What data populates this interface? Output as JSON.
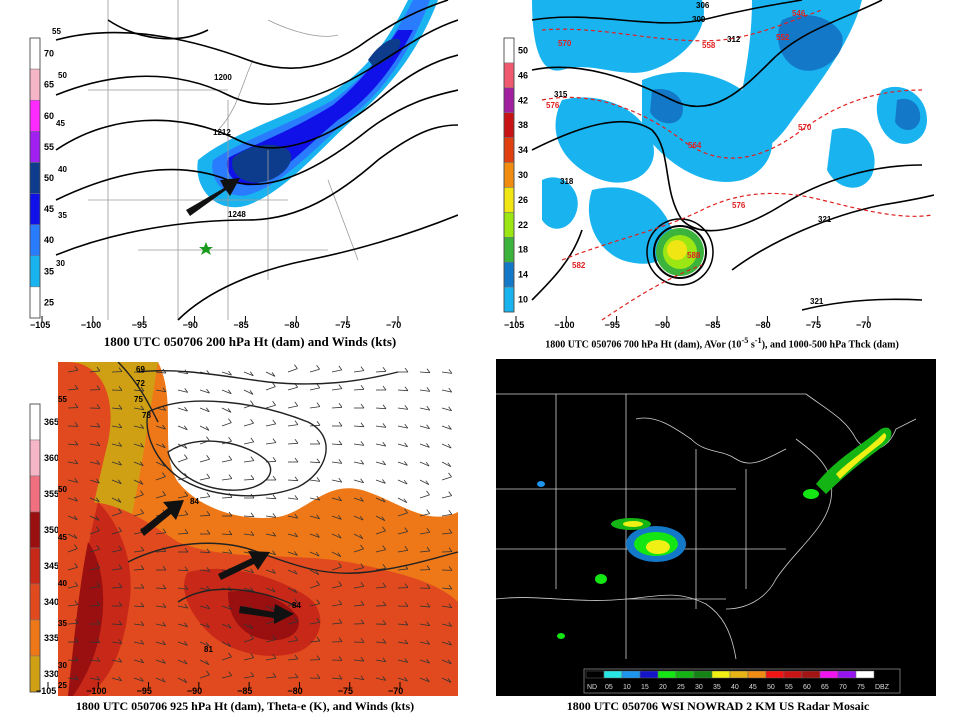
{
  "panels": {
    "tl": {
      "caption": "1800 UTC 050706 200 hPa Ht (dam) and Winds (kts)",
      "scale": [
        "70",
        "65",
        "60",
        "55",
        "50",
        "45",
        "40",
        "35",
        "25"
      ],
      "scale_colors": [
        "#ffffff",
        "#f7b6c8",
        "#ff2aff",
        "#a020f0",
        "#0d3c8c",
        "#1010e8",
        "#2a7cff",
        "#19b4f0",
        "#ffffff"
      ],
      "lon_ticks": [
        "−105",
        "−100",
        "−95",
        "−90",
        "−85",
        "−80",
        "−75",
        "−70"
      ],
      "contours": [
        "55",
        "50",
        "45",
        "40",
        "35",
        "30",
        "1200",
        "1212",
        "1248"
      ]
    },
    "tr": {
      "caption_pre": "1800 UTC 050706 700 hPa Ht (dam), AVor (10",
      "caption_sup1": "-5",
      "caption_mid": " s",
      "caption_sup2": "-1",
      "caption_post": "), and 1000-500 hPa Thck (dam)",
      "scale": [
        "50",
        "46",
        "42",
        "38",
        "34",
        "30",
        "26",
        "22",
        "18",
        "14",
        "10"
      ],
      "scale_colors": [
        "#ffffff",
        "#f05a6e",
        "#a020a0",
        "#c81414",
        "#e04010",
        "#f08c10",
        "#f0e614",
        "#9ce614",
        "#3cb43c",
        "#1478c8",
        "#19b4f0"
      ],
      "lon_ticks": [
        "−105",
        "−100",
        "−95",
        "−90",
        "−85",
        "−80",
        "−75",
        "−70"
      ],
      "contours": [
        "306",
        "309",
        "312",
        "315",
        "318",
        "321",
        "321"
      ],
      "red_contours": [
        "546",
        "552",
        "558",
        "564",
        "570",
        "570",
        "576",
        "576",
        "582",
        "588"
      ]
    },
    "bl": {
      "caption": "1800 UTC 050706 925 hPa Ht (dam), Theta-e (K), and Winds (kts)",
      "scale": [
        "365",
        "360",
        "355",
        "350",
        "345",
        "340",
        "335",
        "330"
      ],
      "scale_colors": [
        "#ffffff",
        "#f7b6c8",
        "#f07080",
        "#9a1010",
        "#c82818",
        "#e04a1e",
        "#ee7818",
        "#d0a014"
      ],
      "lon_ticks": [
        "−105",
        "−100",
        "−95",
        "−90",
        "−85",
        "−80",
        "−75",
        "−70"
      ],
      "contours": [
        "69",
        "72",
        "75",
        "78",
        "84",
        "81",
        "84",
        "55",
        "50",
        "45",
        "40",
        "35",
        "30",
        "25"
      ]
    },
    "br": {
      "caption": "1800 UTC 050706 WSI NOWRAD 2 KM US Radar Mosaic",
      "legend": [
        "ND",
        "05",
        "10",
        "15",
        "20",
        "25",
        "30",
        "35",
        "40",
        "45",
        "50",
        "55",
        "60",
        "65",
        "70",
        "75",
        "DBZ"
      ],
      "legend_colors": [
        "#000000",
        "#29e6e6",
        "#1e96f0",
        "#1414c8",
        "#14e614",
        "#14b414",
        "#148214",
        "#f0f014",
        "#e6b414",
        "#f08c14",
        "#f01414",
        "#c81414",
        "#a01414",
        "#f014f0",
        "#9614f0",
        "#ffffff"
      ]
    }
  },
  "colors": {
    "arrow": "#111111",
    "star": "#1a9a1a"
  }
}
